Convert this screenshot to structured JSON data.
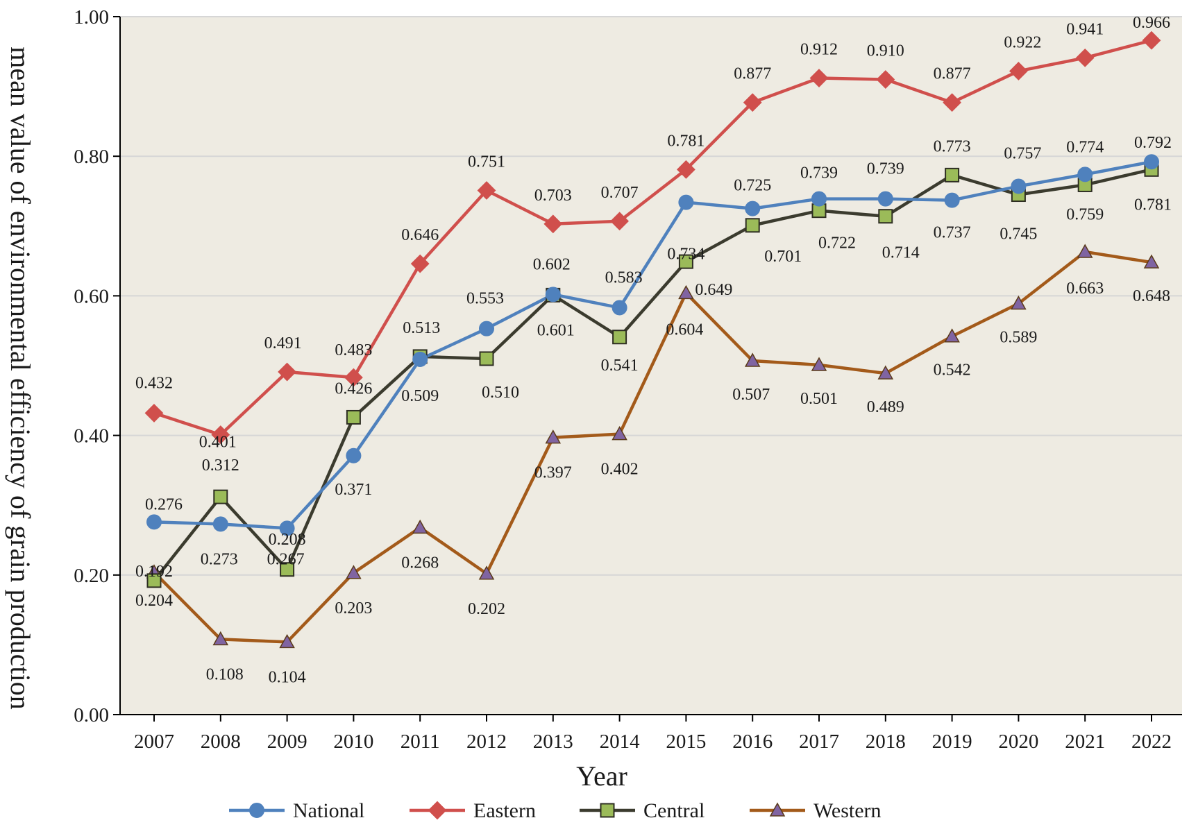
{
  "chart_data": {
    "type": "line",
    "title": "",
    "xlabel": "Year",
    "ylabel": "mean value of environmental efficiency of grain production",
    "ylim": [
      0,
      1
    ],
    "yticks": [
      "0.00",
      "0.20",
      "0.40",
      "0.60",
      "0.80",
      "1.00"
    ],
    "grid": "horizontal",
    "legend_position": "bottom",
    "categories": [
      "2007",
      "2008",
      "2009",
      "2010",
      "2011",
      "2012",
      "2013",
      "2014",
      "2015",
      "2016",
      "2017",
      "2018",
      "2019",
      "2020",
      "2021",
      "2022"
    ],
    "series": [
      {
        "name": "National",
        "color": "#4F81BD",
        "marker": "circle",
        "values": [
          0.276,
          0.273,
          0.267,
          0.371,
          0.509,
          0.553,
          0.602,
          0.583,
          0.734,
          0.725,
          0.739,
          0.739,
          0.737,
          0.757,
          0.774,
          0.792
        ],
        "labels": [
          "0.276",
          "0.273",
          "0.267",
          "0.371",
          "0.509",
          "0.553",
          "0.602",
          "0.583",
          "0.734",
          "0.725",
          "0.739",
          "0.739",
          "0.737",
          "0.757",
          "0.774",
          "0.792"
        ]
      },
      {
        "name": "Eastern",
        "color": "#D04F4C",
        "marker": "diamond",
        "values": [
          0.432,
          0.401,
          0.491,
          0.483,
          0.646,
          0.751,
          0.703,
          0.707,
          0.781,
          0.877,
          0.912,
          0.91,
          0.877,
          0.922,
          0.941,
          0.966
        ],
        "labels": [
          "0.432",
          "0.401",
          "0.491",
          "0.483",
          "0.646",
          "0.751",
          "0.703",
          "0.707",
          "0.781",
          "0.877",
          "0.912",
          "0.910",
          "0.877",
          "0.922",
          "0.941",
          "0.966"
        ]
      },
      {
        "name": "Central",
        "color": "#3B3B2E",
        "marker_fill": "#9BBB59",
        "marker": "square",
        "values": [
          0.192,
          0.312,
          0.208,
          0.426,
          0.513,
          0.51,
          0.601,
          0.541,
          0.649,
          0.701,
          0.722,
          0.714,
          0.773,
          0.745,
          0.759,
          0.781
        ],
        "labels": [
          "0.192",
          "0.312",
          "0.208",
          "0.426",
          "0.513",
          "0.510",
          "0.601",
          "0.541",
          "0.649",
          "0.701",
          "0.722",
          "0.714",
          "0.773",
          "0.745",
          "0.759",
          "0.781"
        ]
      },
      {
        "name": "Western",
        "color": "#A35A1A",
        "marker_fill": "#8064A2",
        "marker": "triangle",
        "values": [
          0.204,
          0.108,
          0.104,
          0.203,
          0.268,
          0.202,
          0.397,
          0.402,
          0.604,
          0.507,
          0.501,
          0.489,
          0.542,
          0.589,
          0.663,
          0.648
        ],
        "labels": [
          "0.204",
          "0.108",
          "0.104",
          "0.203",
          "0.268",
          "0.202",
          "0.397",
          "0.402",
          "0.604",
          "0.507",
          "0.501",
          "0.489",
          "0.542",
          "0.589",
          "0.663",
          "0.648"
        ]
      }
    ]
  },
  "colors": {
    "plot_background": "#EEEBE2",
    "gridline": "#D6D6D6",
    "axis": "#000000"
  }
}
